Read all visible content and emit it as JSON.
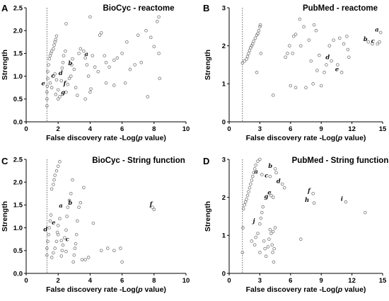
{
  "figure": {
    "xlabel_prefix": "False discovery rate -Log(",
    "xlabel_italic": "p",
    "xlabel_suffix": " value)",
    "ylabel": "Strength"
  },
  "chart_data": [
    {
      "type": "scatter",
      "letter": "A",
      "title": "BioCyc - reactome",
      "xlim": [
        0,
        10
      ],
      "ylim": [
        0,
        2.5
      ],
      "xticks": [
        0,
        2,
        4,
        6,
        8,
        10
      ],
      "yticks": [
        0.0,
        0.5,
        1.0,
        1.5,
        2.0,
        2.5
      ],
      "ytick_labels": [
        "0.0",
        "0.5",
        "1.0",
        "1.5",
        "2.0",
        "2.5"
      ],
      "threshold_x": 1.3,
      "points": [
        [
          1.3,
          0.35
        ],
        [
          1.3,
          0.5
        ],
        [
          1.3,
          0.65
        ],
        [
          1.32,
          0.78
        ],
        [
          1.35,
          0.95
        ],
        [
          1.35,
          1.1
        ],
        [
          1.4,
          1.25
        ],
        [
          1.45,
          1.38
        ],
        [
          1.5,
          1.45
        ],
        [
          1.55,
          1.5
        ],
        [
          1.6,
          1.55
        ],
        [
          1.7,
          1.6
        ],
        [
          1.75,
          1.68
        ],
        [
          1.8,
          1.75
        ],
        [
          1.85,
          1.8
        ],
        [
          1.9,
          1.88
        ],
        [
          1.5,
          0.85
        ],
        [
          1.6,
          0.75
        ],
        [
          1.7,
          1.0
        ],
        [
          1.8,
          1.05
        ],
        [
          1.9,
          0.92
        ],
        [
          2.0,
          0.7
        ],
        [
          2.1,
          0.55
        ],
        [
          2.2,
          0.9
        ],
        [
          2.25,
          1.18
        ],
        [
          2.3,
          1.3
        ],
        [
          2.35,
          1.45
        ],
        [
          2.45,
          1.55
        ],
        [
          2.5,
          0.65
        ],
        [
          2.6,
          0.82
        ],
        [
          2.7,
          0.95
        ],
        [
          2.8,
          1.0
        ],
        [
          2.85,
          1.25
        ],
        [
          2.9,
          1.38
        ],
        [
          3.0,
          1.15
        ],
        [
          3.1,
          0.75
        ],
        [
          3.2,
          0.58
        ],
        [
          3.3,
          1.5
        ],
        [
          3.4,
          1.6
        ],
        [
          3.6,
          1.55
        ],
        [
          3.7,
          1.4
        ],
        [
          3.8,
          1.25
        ],
        [
          3.9,
          1.0
        ],
        [
          4.0,
          0.65
        ],
        [
          4.05,
          0.72
        ],
        [
          4.15,
          1.45
        ],
        [
          4.3,
          1.2
        ],
        [
          4.5,
          1.1
        ],
        [
          4.6,
          1.9
        ],
        [
          4.7,
          1.95
        ],
        [
          4.9,
          1.45
        ],
        [
          5.0,
          1.3
        ],
        [
          5.2,
          1.2
        ],
        [
          5.5,
          1.35
        ],
        [
          5.7,
          1.4
        ],
        [
          6.0,
          1.5
        ],
        [
          6.2,
          0.85
        ],
        [
          6.3,
          1.75
        ],
        [
          6.5,
          1.15
        ],
        [
          6.8,
          1.25
        ],
        [
          7.0,
          1.9
        ],
        [
          7.2,
          1.3
        ],
        [
          7.5,
          2.0
        ],
        [
          7.6,
          0.55
        ],
        [
          7.8,
          1.85
        ],
        [
          8.0,
          1.65
        ],
        [
          8.2,
          2.2
        ],
        [
          8.3,
          2.3
        ],
        [
          8.3,
          1.5
        ],
        [
          8.35,
          0.95
        ],
        [
          4.0,
          2.3
        ],
        [
          2.5,
          2.15
        ],
        [
          2.0,
          0.5
        ],
        [
          1.85,
          0.6
        ],
        [
          3.7,
          0.5
        ],
        [
          5.5,
          0.8
        ],
        [
          5.0,
          0.85
        ]
      ],
      "annotations": [
        {
          "label": "a",
          "x": 4.0,
          "y": 1.42
        },
        {
          "label": "b",
          "x": 3.0,
          "y": 1.22
        },
        {
          "label": "c",
          "x": 1.9,
          "y": 0.95
        },
        {
          "label": "d",
          "x": 2.4,
          "y": 1.0
        },
        {
          "label": "e",
          "x": 1.3,
          "y": 0.78
        },
        {
          "label": "f",
          "x": 2.6,
          "y": 0.78
        },
        {
          "label": "g",
          "x": 2.55,
          "y": 0.58
        }
      ]
    },
    {
      "type": "scatter",
      "letter": "B",
      "title": "PubMed - reactome",
      "xlim": [
        0,
        15
      ],
      "ylim": [
        0,
        3
      ],
      "xticks": [
        0,
        3,
        6,
        9,
        12,
        15
      ],
      "yticks": [
        0,
        1,
        2,
        3
      ],
      "ytick_labels": [
        "0",
        "1",
        "2",
        "3"
      ],
      "threshold_x": 1.3,
      "points": [
        [
          1.3,
          1.55
        ],
        [
          1.5,
          1.6
        ],
        [
          1.7,
          1.65
        ],
        [
          1.8,
          1.72
        ],
        [
          1.9,
          1.8
        ],
        [
          2.0,
          1.88
        ],
        [
          2.1,
          1.95
        ],
        [
          2.2,
          2.0
        ],
        [
          2.3,
          2.05
        ],
        [
          2.4,
          2.12
        ],
        [
          2.55,
          2.2
        ],
        [
          2.7,
          2.28
        ],
        [
          2.8,
          2.32
        ],
        [
          2.9,
          2.4
        ],
        [
          3.0,
          2.5
        ],
        [
          3.05,
          2.55
        ],
        [
          3.1,
          1.8
        ],
        [
          2.7,
          1.3
        ],
        [
          4.3,
          0.7
        ],
        [
          5.5,
          1.7
        ],
        [
          5.7,
          1.8
        ],
        [
          5.9,
          2.0
        ],
        [
          6.2,
          1.8
        ],
        [
          6.3,
          2.25
        ],
        [
          6.5,
          2.3
        ],
        [
          6.0,
          0.95
        ],
        [
          6.5,
          0.9
        ],
        [
          7.0,
          2.0
        ],
        [
          7.3,
          2.5
        ],
        [
          7.5,
          0.9
        ],
        [
          7.8,
          2.15
        ],
        [
          8.0,
          1.6
        ],
        [
          8.2,
          1.0
        ],
        [
          8.3,
          2.55
        ],
        [
          8.5,
          2.4
        ],
        [
          8.6,
          1.35
        ],
        [
          8.8,
          1.75
        ],
        [
          9.0,
          0.95
        ],
        [
          9.3,
          1.3
        ],
        [
          9.5,
          1.5
        ],
        [
          9.8,
          2.0
        ],
        [
          10.0,
          1.6
        ],
        [
          10.2,
          2.15
        ],
        [
          10.6,
          1.5
        ],
        [
          10.8,
          2.2
        ],
        [
          11.0,
          1.3
        ],
        [
          11.2,
          2.05
        ],
        [
          11.5,
          2.25
        ],
        [
          11.6,
          1.9
        ],
        [
          11.7,
          1.7
        ],
        [
          13.6,
          2.1
        ],
        [
          14.0,
          2.05
        ],
        [
          14.5,
          2.05
        ],
        [
          14.7,
          2.1
        ],
        [
          14.8,
          2.35
        ],
        [
          6.9,
          2.7
        ]
      ],
      "annotations": [
        {
          "label": "a",
          "x": 14.8,
          "y": 2.35
        },
        {
          "label": "b",
          "x": 13.7,
          "y": 2.1
        },
        {
          "label": "c",
          "x": 14.4,
          "y": 2.05
        },
        {
          "label": "d",
          "x": 10.0,
          "y": 1.62
        },
        {
          "label": "e",
          "x": 10.9,
          "y": 1.3
        }
      ]
    },
    {
      "type": "scatter",
      "letter": "C",
      "title": "BioCyc - String function",
      "xlim": [
        0,
        10
      ],
      "ylim": [
        0.0,
        2.5
      ],
      "xticks": [
        0,
        2,
        4,
        6,
        8,
        10
      ],
      "yticks": [
        0.0,
        0.5,
        1.0,
        1.5,
        2.0,
        2.5
      ],
      "ytick_labels": [
        "0.0",
        "0.5",
        "1.0",
        "1.5",
        "2.0",
        "2.5"
      ],
      "threshold_x": 1.3,
      "points": [
        [
          1.3,
          0.4
        ],
        [
          1.3,
          0.55
        ],
        [
          1.35,
          0.7
        ],
        [
          1.4,
          0.85
        ],
        [
          1.45,
          1.0
        ],
        [
          1.5,
          1.15
        ],
        [
          1.55,
          1.28
        ],
        [
          1.6,
          1.85
        ],
        [
          1.7,
          1.95
        ],
        [
          1.75,
          2.05
        ],
        [
          1.8,
          2.15
        ],
        [
          1.9,
          2.25
        ],
        [
          2.0,
          2.35
        ],
        [
          2.1,
          2.45
        ],
        [
          1.6,
          0.35
        ],
        [
          1.7,
          0.45
        ],
        [
          1.8,
          0.55
        ],
        [
          1.9,
          0.7
        ],
        [
          1.95,
          0.9
        ],
        [
          2.0,
          1.05
        ],
        [
          2.1,
          1.2
        ],
        [
          2.2,
          0.38
        ],
        [
          2.25,
          0.5
        ],
        [
          2.3,
          0.62
        ],
        [
          2.4,
          0.78
        ],
        [
          2.5,
          0.95
        ],
        [
          2.55,
          1.25
        ],
        [
          2.6,
          1.45
        ],
        [
          2.7,
          1.6
        ],
        [
          2.8,
          1.75
        ],
        [
          2.9,
          2.05
        ],
        [
          2.95,
          0.25
        ],
        [
          3.0,
          0.4
        ],
        [
          3.05,
          0.55
        ],
        [
          3.1,
          0.65
        ],
        [
          3.15,
          0.85
        ],
        [
          3.2,
          1.15
        ],
        [
          3.3,
          1.45
        ],
        [
          3.4,
          1.55
        ],
        [
          3.5,
          0.3
        ],
        [
          3.6,
          1.88
        ],
        [
          3.7,
          0.3
        ],
        [
          3.9,
          0.35
        ],
        [
          4.2,
          1.1
        ],
        [
          4.7,
          0.5
        ],
        [
          5.1,
          0.55
        ],
        [
          5.5,
          0.5
        ],
        [
          5.9,
          0.55
        ],
        [
          6.0,
          0.25
        ],
        [
          7.9,
          1.45
        ],
        [
          8.0,
          1.4
        ],
        [
          2.0,
          0.85
        ],
        [
          2.2,
          0.72
        ],
        [
          2.5,
          0.48
        ]
      ],
      "annotations": [
        {
          "label": "a",
          "x": 2.4,
          "y": 1.42
        },
        {
          "label": "b",
          "x": 3.0,
          "y": 1.48
        },
        {
          "label": "c",
          "x": 2.8,
          "y": 0.68
        },
        {
          "label": "d",
          "x": 1.45,
          "y": 0.9
        },
        {
          "label": "e",
          "x": 1.95,
          "y": 1.05
        },
        {
          "label": "f",
          "x": 8.0,
          "y": 1.45
        }
      ]
    },
    {
      "type": "scatter",
      "letter": "D",
      "title": "PubMed - String function",
      "xlim": [
        0,
        15
      ],
      "ylim": [
        0,
        3
      ],
      "xticks": [
        0,
        3,
        6,
        9,
        12,
        15
      ],
      "yticks": [
        0,
        1,
        2,
        3
      ],
      "ytick_labels": [
        "0",
        "1",
        "2",
        "3"
      ],
      "threshold_x": 1.3,
      "points": [
        [
          1.3,
          0.55
        ],
        [
          1.35,
          1.2
        ],
        [
          1.4,
          1.7
        ],
        [
          1.5,
          1.8
        ],
        [
          1.6,
          1.88
        ],
        [
          1.7,
          1.95
        ],
        [
          1.8,
          2.05
        ],
        [
          1.9,
          2.15
        ],
        [
          2.0,
          2.25
        ],
        [
          2.1,
          2.35
        ],
        [
          2.2,
          2.45
        ],
        [
          2.3,
          2.55
        ],
        [
          2.4,
          2.65
        ],
        [
          2.5,
          2.75
        ],
        [
          2.6,
          2.85
        ],
        [
          2.8,
          2.95
        ],
        [
          3.0,
          3.0
        ],
        [
          2.2,
          0.85
        ],
        [
          2.5,
          0.75
        ],
        [
          2.6,
          0.95
        ],
        [
          2.8,
          1.05
        ],
        [
          3.0,
          1.3
        ],
        [
          3.1,
          1.45
        ],
        [
          3.2,
          1.6
        ],
        [
          3.3,
          1.75
        ],
        [
          3.0,
          0.55
        ],
        [
          3.4,
          0.85
        ],
        [
          3.5,
          0.65
        ],
        [
          3.6,
          0.45
        ],
        [
          3.8,
          0.7
        ],
        [
          3.9,
          0.9
        ],
        [
          4.0,
          1.15
        ],
        [
          4.1,
          1.05
        ],
        [
          4.2,
          0.75
        ],
        [
          4.25,
          0.55
        ],
        [
          4.3,
          1.1
        ],
        [
          4.35,
          0.3
        ],
        [
          4.4,
          0.65
        ],
        [
          4.5,
          1.2
        ],
        [
          4.0,
          2.55
        ],
        [
          4.1,
          2.05
        ],
        [
          4.5,
          2.75
        ],
        [
          4.6,
          2.65
        ],
        [
          5.2,
          2.35
        ],
        [
          5.4,
          2.25
        ],
        [
          7.0,
          0.9
        ],
        [
          8.2,
          2.1
        ],
        [
          8.3,
          1.85
        ],
        [
          11.4,
          1.88
        ],
        [
          13.3,
          1.6
        ],
        [
          4.3,
          2.0
        ],
        [
          3.2,
          2.6
        ]
      ],
      "annotations": [
        {
          "label": "a",
          "x": 3.0,
          "y": 2.6
        },
        {
          "label": "b",
          "x": 4.4,
          "y": 2.75
        },
        {
          "label": "c",
          "x": 4.0,
          "y": 2.5
        },
        {
          "label": "d",
          "x": 5.2,
          "y": 2.35
        },
        {
          "label": "e",
          "x": 4.3,
          "y": 2.05
        },
        {
          "label": "f",
          "x": 8.1,
          "y": 2.1
        },
        {
          "label": "g",
          "x": 4.0,
          "y": 1.95
        },
        {
          "label": "h",
          "x": 8.0,
          "y": 1.85
        },
        {
          "label": "i",
          "x": 11.3,
          "y": 1.88
        },
        {
          "label": "j",
          "x": 2.7,
          "y": 1.3
        }
      ]
    }
  ]
}
